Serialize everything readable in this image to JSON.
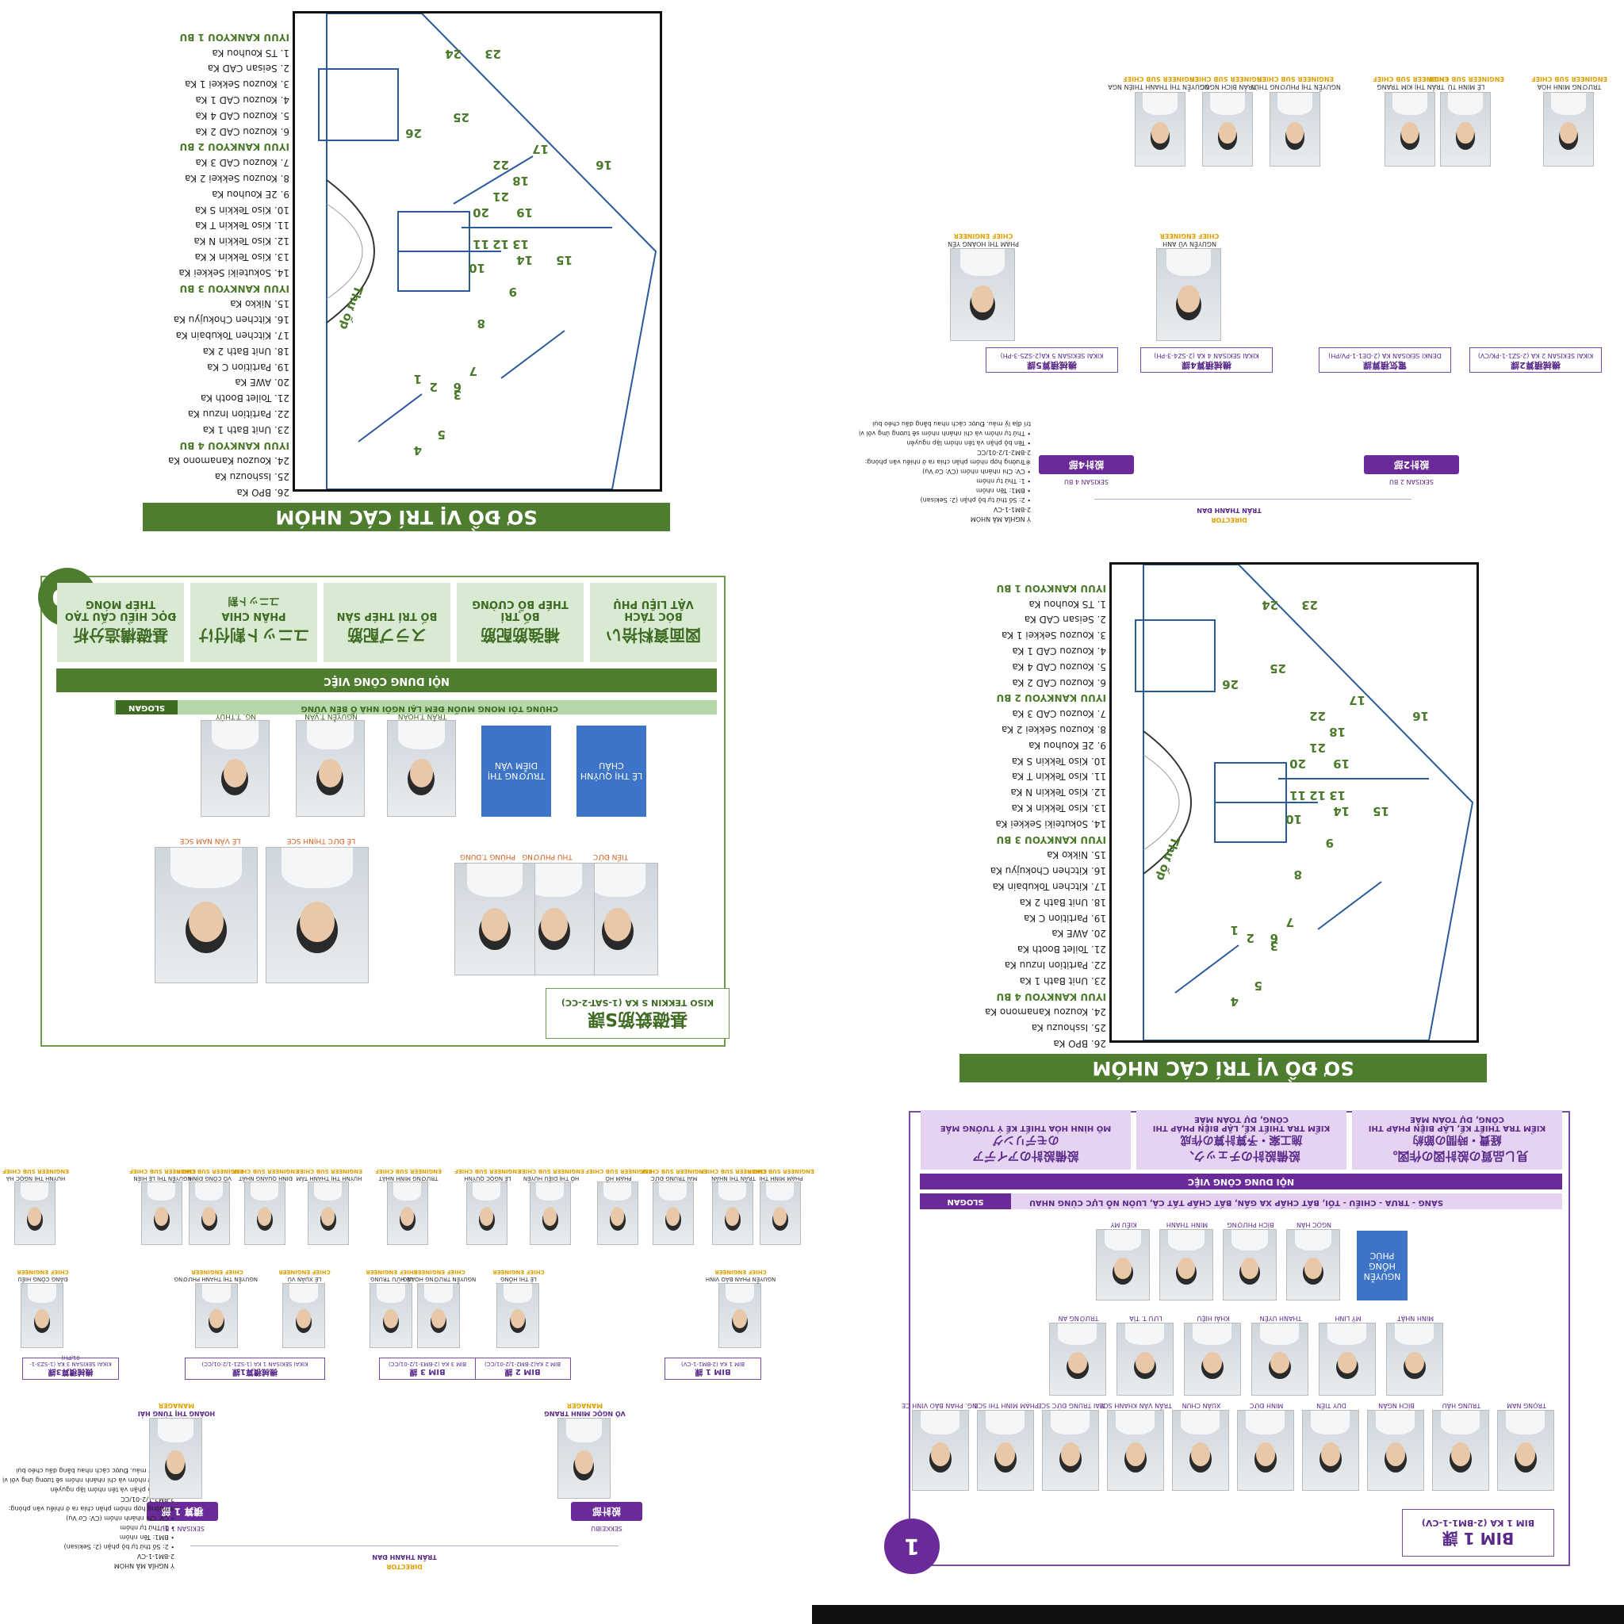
{
  "floor_plan": {
    "title": "SƠ ĐỒ VỊ TRÍ CÁC NHÓM",
    "items": [
      {
        "t": "26. BPO Ka",
        "bu": false
      },
      {
        "t": "25. Isshouzu Ka",
        "bu": false
      },
      {
        "t": "24. Kouzou Kanamono Ka",
        "bu": false
      },
      {
        "t": "IYUU KANKYOU 4 BU",
        "bu": true
      },
      {
        "t": "23. Unit Bath 1 Ka",
        "bu": false
      },
      {
        "t": "22. Partition Inzuu Ka",
        "bu": false
      },
      {
        "t": "21. Toilet Booth Ka",
        "bu": false
      },
      {
        "t": "20. AWE Ka",
        "bu": false
      },
      {
        "t": "19. Partition C Ka",
        "bu": false
      },
      {
        "t": "18. Unit Bath 2 Ka",
        "bu": false
      },
      {
        "t": "17. Kitchen Tokubain Ka",
        "bu": false
      },
      {
        "t": "16. Kitchen Chokujyu Ka",
        "bu": false
      },
      {
        "t": "15. Nikko Ka",
        "bu": false
      },
      {
        "t": "IYUU KANKYOU 3 BU",
        "bu": true
      },
      {
        "t": "14. Sokuteiki Sekkei Ka",
        "bu": false
      },
      {
        "t": "13. Kiso Tekkin K Ka",
        "bu": false
      },
      {
        "t": "12. Kiso Tekkin N Ka",
        "bu": false
      },
      {
        "t": "11. Kiso Tekkin T Ka",
        "bu": false
      },
      {
        "t": "10. Kiso Tekkin S Ka",
        "bu": false
      },
      {
        "t": "9. 2E Kouhou Ka",
        "bu": false
      },
      {
        "t": "8. Kouzou Sekkei 2 Ka",
        "bu": false
      },
      {
        "t": "7. Kouzou CAD 3 Ka",
        "bu": false
      },
      {
        "t": "IYUU KANKYOU 2 BU",
        "bu": true
      },
      {
        "t": "6. Kouzou CAD 2 Ka",
        "bu": false
      },
      {
        "t": "5. Kouzou CAD 4 Ka",
        "bu": false
      },
      {
        "t": "4. Kouzou CAD 1 Ka",
        "bu": false
      },
      {
        "t": "3. Kouzou Sekkei 1 Ka",
        "bu": false
      },
      {
        "t": "2. Seisan CAD Ka",
        "bu": false
      },
      {
        "t": "1. TS Kouhou Ka",
        "bu": false
      },
      {
        "t": "IYUU KANKYOU 1 BU",
        "bu": true
      }
    ],
    "room_label": "Thư ốp",
    "nums": [
      "4",
      "5",
      "3",
      "2",
      "1",
      "6",
      "7",
      "8",
      "9",
      "14",
      "15",
      "10",
      "11",
      "12",
      "13",
      "20",
      "19",
      "16",
      "21",
      "18",
      "22",
      "17",
      "26",
      "25",
      "24",
      "23"
    ]
  },
  "org_top": {
    "director_role": "DIRECTOR",
    "director_name": "TRẦN THANH ĐAN",
    "bu_left": "設計2部",
    "bu_left_sub": "SEKISAN 2 BU",
    "bu_right": "設計4部",
    "bu_right_sub": "SEKISAN 4 BU",
    "groups": [
      "KIKAI SEKISAN 2 KA (2-SZ1-1-PK/CV)",
      "DENKI SEKISAN KA (2-DE1-1-PV/PH)",
      "KIKAI SEKISAN 4 KA (2-SZ4-3-PH)",
      "KIKAI SEKISAN 5 KA(2-SZ5-3-PH)"
    ],
    "group_jp": [
      "機械積算2課",
      "電気積算課",
      "機械積算4課",
      "機械積算5課"
    ],
    "chiefs": [
      {
        "role": "CHIEF ENGINEER",
        "name": "NGUYỄN VŨ ANH"
      },
      {
        "role": "CHIEF ENGINEER",
        "name": "PHẠM THỊ HOÀNG YẾN"
      }
    ],
    "members": [
      {
        "role": "ENGINEER SUB CHIEF",
        "name": "TRƯƠNG MINH HÒA"
      },
      {
        "role": "ENGINEER SUB CHIEF",
        "name": "LÊ MINH TÚ"
      },
      {
        "role": "ENGINEER SUB CHIEF",
        "name": "TRẦN THỊ KIM TRANG"
      },
      {
        "role": "ENGINEER SUB CHIEF",
        "name": "NGUYỄN THỊ PHƯƠNG THÚY"
      },
      {
        "role": "ENGINEER SUB CHIEF",
        "name": "TRẦN BÍCH NGỌC"
      },
      {
        "role": "ENGINEER SUB CHIEF",
        "name": "NGUYỄN THỊ THANH THIÊN NGA"
      }
    ],
    "notes": [
      "Ý NGHĨA MÃ NHÓM",
      "2-BM1-1-CV",
      "• 2: Số thứ tự bộ phận (2: Sekisan)",
      "• BM1: Tên nhóm",
      "• 1: Thứ tự nhóm",
      "• CV: Chi nhánh nhóm (CV: Cơ Vụ)",
      "※Trường hợp nhóm phân chia ra ở nhiều văn phòng:",
      "2-BM2-1/2-01/CC",
      "• Tên bộ phận và tên nhóm lặp nguyên",
      "• Thứ tự nhóm và chi nhánh nhóm sẽ tương ứng với vị",
      "trí địa lý mảu. Được cách nhau bằng dấu chéo bụi"
    ]
  },
  "team_green": {
    "badge": "10",
    "group_jp": "基礎鉄筋S課",
    "group_code": "KISO TEKKIN S KA (1-SAT-2-CC)",
    "members_row1": [
      "TIẾN ĐỨC",
      "THU PHƯƠNG",
      "PHÙNG T.DUNG",
      "LÊ ĐỨC THỊNH SCE",
      "LÊ VĂN NAM SCE"
    ],
    "members_row2": [
      "TRẦN T.HOÀN",
      "NGUYỄN T.VÂN",
      "NG. T.THỦY"
    ],
    "blue1": "LÊ THỊ QUỲNH CHÂU",
    "blue2": "TRƯƠNG THỊ DIỄM VÂN",
    "slogan_label": "SLOGAN",
    "slogan": "CHÚNG TÔI MONG MUỐN ĐEM LẠI NGÔI NHÀ Ổ BỀN VỮNG",
    "section": "NỘI DUNG CÔNG VIỆC",
    "cards": [
      {
        "jp": "図面資料拾い",
        "vn1": "BÓC TÁCH",
        "vn2": "VẬT LIỆU PHỤ"
      },
      {
        "jp": "補強筋配筋",
        "vn1": "BỐ TRÍ",
        "vn2": "THÉP BỔ CƯỜNG"
      },
      {
        "jp": "スラブ配筋",
        "vn1": "BỐ TRÍ THÉP SÀN",
        "vn2": ""
      },
      {
        "jp": "ユニット割付け",
        "vn1": "PHÂN CHIA",
        "vn2": "ユニット割"
      },
      {
        "jp": "基礎構造分析",
        "vn1": "ĐỌC HIỂU CẤU TẠO",
        "vn2": "THÉP MÓNG"
      }
    ]
  },
  "org_bottom": {
    "director_role": "DIRECTOR",
    "director_name": "TRẦN THANH ĐAN",
    "bu_left": "設計部",
    "bu_left_sub": "SEKKEIBU",
    "bu_right": "積算 1 部",
    "bu_right_sub": "SEKISAN 1 BU",
    "managers": [
      {
        "role": "MANAGER",
        "name": "VÕ NGỌC MINH TRANG"
      },
      {
        "role": "MANAGER",
        "name": "HOÀNG THỊ TÙNG HẢI"
      }
    ],
    "groups": [
      "BIM 1 KA (2-BM1-1-CV)",
      "BIM 2 KA(2-BM2-1/2-01/CC)",
      "BIM 3 KA (2-BM3-1/2-01/CC)",
      "KIKAI SEKISAN 1 KA (1-SZ1-1/2-01/CC)",
      "KIKAI SEKISAN 3 KA (1-SZ3-1-01/PH)"
    ],
    "group_jp": [
      "BIM 1 課",
      "BIM 2 課",
      "BIM 3 課",
      "機械積算1課",
      "機械積算3課"
    ],
    "chiefs": [
      "NGUYỄN PHAN BẢO VINH",
      "LÊ THỊ HỒNG",
      "NGUYỄN TRƯỜNG HOÀNG",
      "LÊ HỮU TRUNG",
      "LÊ XUÂN VŨ",
      "NGUYỄN THỊ THANH PHƯƠNG",
      "ĐẶNG CÔNG HIẾU"
    ],
    "chief_role": "CHIEF ENGINEER",
    "members": [
      "PHẠM MINH THI",
      "TRẦN THỊ NHÂN",
      "MAI TRUNG ĐỨC",
      "PHẠM HỒ",
      "HỒ THỊ DIỆU HUYỀN",
      "LÊ NGỌC QUÝNH",
      "TRƯƠNG MINH NHẬT",
      "HUỲNH THỊ THANH TÂM",
      "ĐINH QUANG NHẬT",
      "VÕ CÔNG ĐỊNH",
      "NGUYỄN THỊ LỆ HIỀN",
      "HUỲNH THỊ NGỌC HÀ"
    ],
    "member_role": "ENGINEER SUB CHIEF",
    "notes": [
      "Ý NGHĨA MÃ NHÓM",
      "2-BM1-1-CV",
      "• 2: Số thứ tự bộ phận (2: Sekisan)",
      "• BM1: Tên nhóm",
      "• 1: Thứ tự nhóm",
      "• CV: Chi nhánh nhóm (CV: Cơ Vụ)",
      "※Trường hợp nhóm phân chia ra ở nhiều văn phòng:",
      "2-BM2-1/2-01/CC",
      "• Tên bộ phận và tên nhóm lặp nguyên",
      "• Thứ tự nhóm và chi nhánh nhóm sẽ tương ứng với vị",
      "trí địa lý mảu. Được cách nhau bằng dấu chéo bụi"
    ]
  },
  "team_purple": {
    "badge": "1",
    "group_jp": "BIM 1 課",
    "group_code": "BIM 1 KA (2-BM1-1-CV)",
    "row1": [
      "TRỌNG NAM",
      "TRUNG HẬU",
      "BÍCH NGÂN",
      "DUY TIẾN",
      "MINH ĐỨC",
      "XUÂN CHUN",
      "TRẦN VĂN KHANH SCE",
      "MAI TRUNG ĐỨC SCE",
      "PHẠM MINH THI SCE",
      "NG. PHAN BẢO VINH CE"
    ],
    "row2": [
      "MINH NHẬT",
      "MỸ LINH",
      "THANH UYÊN",
      "KHẢI HIỆU",
      "LƯU T. TÌA",
      "TRƯỜNG AN"
    ],
    "row3": [
      "NGỌC HÂN",
      "BÍCH PHƯỢNG",
      "MINH THANH",
      "KIỀU MY"
    ],
    "blue": "NGUYỄN HỒNG PHÚC",
    "slogan_label": "SLOGAN",
    "slogan": "SÁNG - TRƯA - CHIỀU - TỐI, BẤT CHẤP XA GẦN, BẤT CHẤP TẤT CẢ, LUÔN NỖ LỰC CÙNG NHAU",
    "section": "NỘI DUNG CÔNG VIỆC",
    "cards": [
      {
        "jp": "見し品質の設計図の作図。",
        "jp2": "経費・時間の節約",
        "vn1": "KIỂM TRA THIẾT KẾ, LẬP BIỆN PHÁP THI",
        "vn2": "CÔNG, DỰ TOÁN MẮE"
      },
      {
        "jp": "設備設計のチェック、",
        "jp2": "施工案・予算計算の作成",
        "vn1": "KIỂM TRA THIẾT KẾ, LẬP BIỆN PHÁP THI",
        "vn2": "CÔNG, DỰ TOÁN MẮE"
      },
      {
        "jp": "設備設計のアイデア",
        "jp2": "のモデリング",
        "vn1": "MÔ HÌNH HÓA THIẾT KẾ Ý TƯỞNG MẮE",
        "vn2": ""
      }
    ]
  }
}
